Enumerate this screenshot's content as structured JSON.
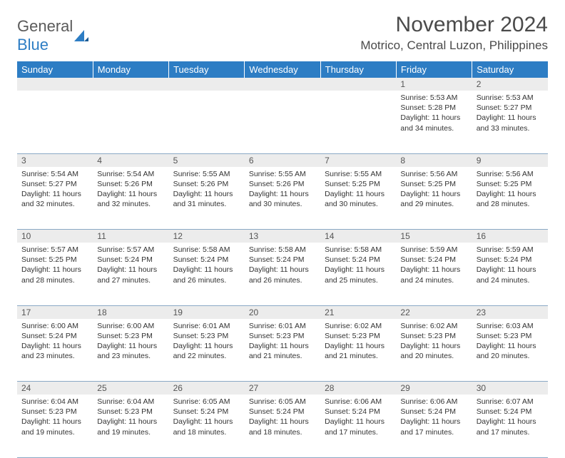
{
  "logo": {
    "word1": "General",
    "word2": "Blue"
  },
  "title": "November 2024",
  "location": "Motrico, Central Luzon, Philippines",
  "colors": {
    "header_bg": "#2d7dc4",
    "header_text": "#ffffff",
    "daynum_bg": "#ececec",
    "cell_border": "#8aa9c5",
    "body_text": "#333333",
    "title_text": "#4a4a4a"
  },
  "weekdays": [
    "Sunday",
    "Monday",
    "Tuesday",
    "Wednesday",
    "Thursday",
    "Friday",
    "Saturday"
  ],
  "weeks": [
    [
      null,
      null,
      null,
      null,
      null,
      {
        "day": "1",
        "sunrise": "Sunrise: 5:53 AM",
        "sunset": "Sunset: 5:28 PM",
        "daylight": "Daylight: 11 hours and 34 minutes."
      },
      {
        "day": "2",
        "sunrise": "Sunrise: 5:53 AM",
        "sunset": "Sunset: 5:27 PM",
        "daylight": "Daylight: 11 hours and 33 minutes."
      }
    ],
    [
      {
        "day": "3",
        "sunrise": "Sunrise: 5:54 AM",
        "sunset": "Sunset: 5:27 PM",
        "daylight": "Daylight: 11 hours and 32 minutes."
      },
      {
        "day": "4",
        "sunrise": "Sunrise: 5:54 AM",
        "sunset": "Sunset: 5:26 PM",
        "daylight": "Daylight: 11 hours and 32 minutes."
      },
      {
        "day": "5",
        "sunrise": "Sunrise: 5:55 AM",
        "sunset": "Sunset: 5:26 PM",
        "daylight": "Daylight: 11 hours and 31 minutes."
      },
      {
        "day": "6",
        "sunrise": "Sunrise: 5:55 AM",
        "sunset": "Sunset: 5:26 PM",
        "daylight": "Daylight: 11 hours and 30 minutes."
      },
      {
        "day": "7",
        "sunrise": "Sunrise: 5:55 AM",
        "sunset": "Sunset: 5:25 PM",
        "daylight": "Daylight: 11 hours and 30 minutes."
      },
      {
        "day": "8",
        "sunrise": "Sunrise: 5:56 AM",
        "sunset": "Sunset: 5:25 PM",
        "daylight": "Daylight: 11 hours and 29 minutes."
      },
      {
        "day": "9",
        "sunrise": "Sunrise: 5:56 AM",
        "sunset": "Sunset: 5:25 PM",
        "daylight": "Daylight: 11 hours and 28 minutes."
      }
    ],
    [
      {
        "day": "10",
        "sunrise": "Sunrise: 5:57 AM",
        "sunset": "Sunset: 5:25 PM",
        "daylight": "Daylight: 11 hours and 28 minutes."
      },
      {
        "day": "11",
        "sunrise": "Sunrise: 5:57 AM",
        "sunset": "Sunset: 5:24 PM",
        "daylight": "Daylight: 11 hours and 27 minutes."
      },
      {
        "day": "12",
        "sunrise": "Sunrise: 5:58 AM",
        "sunset": "Sunset: 5:24 PM",
        "daylight": "Daylight: 11 hours and 26 minutes."
      },
      {
        "day": "13",
        "sunrise": "Sunrise: 5:58 AM",
        "sunset": "Sunset: 5:24 PM",
        "daylight": "Daylight: 11 hours and 26 minutes."
      },
      {
        "day": "14",
        "sunrise": "Sunrise: 5:58 AM",
        "sunset": "Sunset: 5:24 PM",
        "daylight": "Daylight: 11 hours and 25 minutes."
      },
      {
        "day": "15",
        "sunrise": "Sunrise: 5:59 AM",
        "sunset": "Sunset: 5:24 PM",
        "daylight": "Daylight: 11 hours and 24 minutes."
      },
      {
        "day": "16",
        "sunrise": "Sunrise: 5:59 AM",
        "sunset": "Sunset: 5:24 PM",
        "daylight": "Daylight: 11 hours and 24 minutes."
      }
    ],
    [
      {
        "day": "17",
        "sunrise": "Sunrise: 6:00 AM",
        "sunset": "Sunset: 5:24 PM",
        "daylight": "Daylight: 11 hours and 23 minutes."
      },
      {
        "day": "18",
        "sunrise": "Sunrise: 6:00 AM",
        "sunset": "Sunset: 5:23 PM",
        "daylight": "Daylight: 11 hours and 23 minutes."
      },
      {
        "day": "19",
        "sunrise": "Sunrise: 6:01 AM",
        "sunset": "Sunset: 5:23 PM",
        "daylight": "Daylight: 11 hours and 22 minutes."
      },
      {
        "day": "20",
        "sunrise": "Sunrise: 6:01 AM",
        "sunset": "Sunset: 5:23 PM",
        "daylight": "Daylight: 11 hours and 21 minutes."
      },
      {
        "day": "21",
        "sunrise": "Sunrise: 6:02 AM",
        "sunset": "Sunset: 5:23 PM",
        "daylight": "Daylight: 11 hours and 21 minutes."
      },
      {
        "day": "22",
        "sunrise": "Sunrise: 6:02 AM",
        "sunset": "Sunset: 5:23 PM",
        "daylight": "Daylight: 11 hours and 20 minutes."
      },
      {
        "day": "23",
        "sunrise": "Sunrise: 6:03 AM",
        "sunset": "Sunset: 5:23 PM",
        "daylight": "Daylight: 11 hours and 20 minutes."
      }
    ],
    [
      {
        "day": "24",
        "sunrise": "Sunrise: 6:04 AM",
        "sunset": "Sunset: 5:23 PM",
        "daylight": "Daylight: 11 hours and 19 minutes."
      },
      {
        "day": "25",
        "sunrise": "Sunrise: 6:04 AM",
        "sunset": "Sunset: 5:23 PM",
        "daylight": "Daylight: 11 hours and 19 minutes."
      },
      {
        "day": "26",
        "sunrise": "Sunrise: 6:05 AM",
        "sunset": "Sunset: 5:24 PM",
        "daylight": "Daylight: 11 hours and 18 minutes."
      },
      {
        "day": "27",
        "sunrise": "Sunrise: 6:05 AM",
        "sunset": "Sunset: 5:24 PM",
        "daylight": "Daylight: 11 hours and 18 minutes."
      },
      {
        "day": "28",
        "sunrise": "Sunrise: 6:06 AM",
        "sunset": "Sunset: 5:24 PM",
        "daylight": "Daylight: 11 hours and 17 minutes."
      },
      {
        "day": "29",
        "sunrise": "Sunrise: 6:06 AM",
        "sunset": "Sunset: 5:24 PM",
        "daylight": "Daylight: 11 hours and 17 minutes."
      },
      {
        "day": "30",
        "sunrise": "Sunrise: 6:07 AM",
        "sunset": "Sunset: 5:24 PM",
        "daylight": "Daylight: 11 hours and 17 minutes."
      }
    ]
  ]
}
